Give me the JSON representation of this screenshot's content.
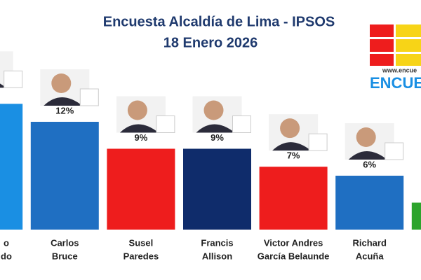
{
  "chart_data": {
    "type": "bar",
    "title": "Encuesta Alcaldía de Lima - IPSOS",
    "subtitle": "18 Enero 2026",
    "categories": [
      [
        "o",
        "do"
      ],
      [
        "Carlos",
        "Bruce"
      ],
      [
        "Susel",
        "Paredes"
      ],
      [
        "Francis",
        "Allison"
      ],
      [
        "Victor Andres",
        "García Belaunde"
      ],
      [
        "Richard",
        "Acuña"
      ],
      null
    ],
    "values": [
      14,
      12,
      9,
      9,
      7,
      6,
      3
    ],
    "value_labels": [
      null,
      "12%",
      "9%",
      "9%",
      "7%",
      "6%",
      null
    ],
    "colors": [
      "#1a8fe3",
      "#1f6fc2",
      "#ee1d1d",
      "#0f2c6b",
      "#ee1d1d",
      "#1f6fc2",
      "#2ca42c"
    ],
    "ylim": [
      0,
      15
    ]
  },
  "logo": {
    "url": "www.encue",
    "text": "ENCUE"
  }
}
